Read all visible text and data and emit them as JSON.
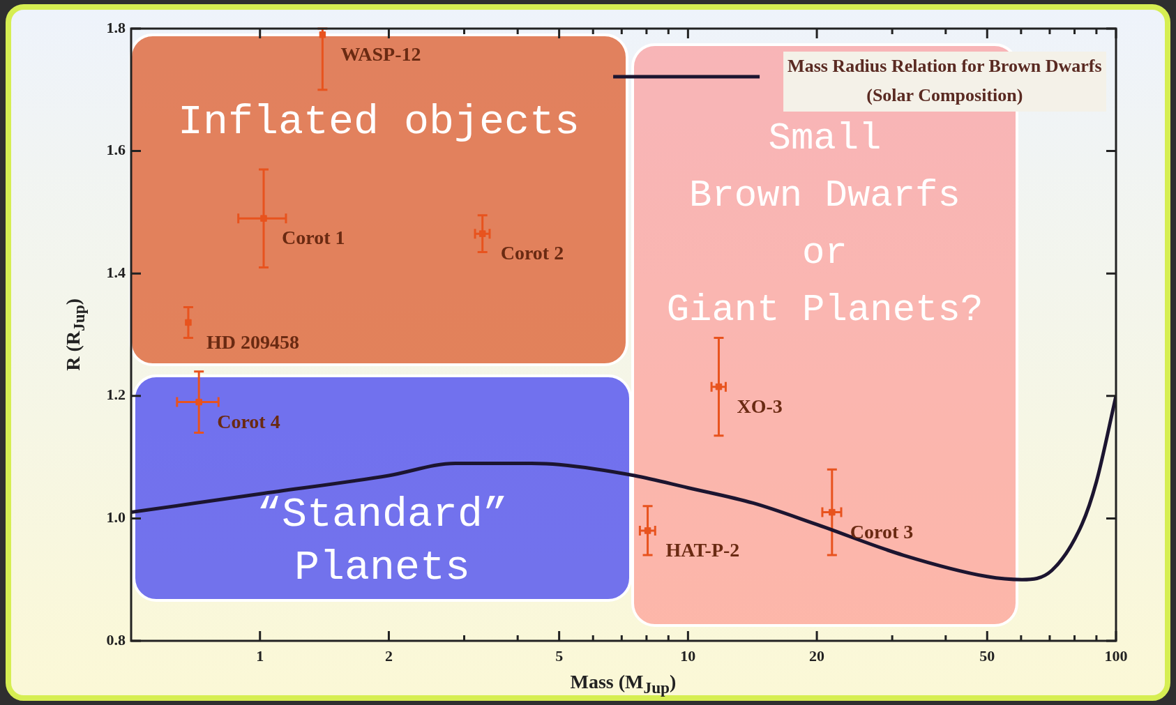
{
  "chart_data": {
    "type": "scatter",
    "xlabel": "Mass (M$_{Jup}$)",
    "ylabel": "R (R$_{Jup}$)",
    "log": "x",
    "xlim": [
      0.5,
      100
    ],
    "ylim": [
      0.8,
      1.8
    ],
    "xticks": [
      1,
      2,
      5,
      10,
      20,
      50,
      100,
      {
        "value": 3,
        "label": null
      },
      {
        "value": 4,
        "label": null
      },
      {
        "value": 6,
        "label": null
      },
      {
        "value": 7,
        "label": null
      },
      {
        "value": 8,
        "label": null
      },
      {
        "value": 9,
        "label": null
      },
      {
        "value": 30,
        "label": null
      },
      {
        "value": 40,
        "label": null
      },
      {
        "value": 60,
        "label": null
      },
      {
        "value": 70,
        "label": null
      },
      {
        "value": 80,
        "label": null
      },
      {
        "value": 90,
        "label": null
      }
    ],
    "yticks": [
      0.8,
      {
        "value": 1,
        "label": "1.0"
      },
      1.2,
      1.4,
      1.6,
      1.8
    ],
    "grid": false,
    "legend": "top right",
    "series": [
      {
        "type": "line",
        "name": "Mass Radius Relation for Brown Dwarfs (Solar Composition)",
        "color": "#1c1530",
        "marker": "none",
        "line_style": "solid",
        "x": [
          0.5,
          1,
          2,
          2.86,
          4.27,
          5,
          7.5,
          10,
          14.2,
          20,
          31.8,
          50,
          60.3,
          70.8,
          83.2,
          90,
          100
        ],
        "values": [
          1.01,
          1.04,
          1.07,
          1.09,
          1.09,
          1.088,
          1.07,
          1.05,
          1.025,
          0.99,
          0.94,
          0.905,
          0.9,
          0.915,
          0.99,
          1.06,
          1.2
        ]
      },
      {
        "type": "scatter",
        "color": "#e8531e",
        "marker": "square",
        "x": [
          1.4,
          1.02,
          3.31,
          0.68,
          0.72,
          11.8,
          8.05,
          21.7
        ],
        "values": [
          1.79,
          1.49,
          1.465,
          1.32,
          1.19,
          1.215,
          0.98,
          1.01
        ],
        "errors": [
          [
            1.7,
            1.8
          ],
          0.08,
          0.03,
          0.025,
          0.05,
          0.08,
          0.04,
          0.07
        ],
        "xerrors": [
          null,
          0.13,
          0.13,
          null,
          0.08,
          0.45,
          0.33,
          1.1
        ]
      }
    ],
    "annotations": [
      "Inflated objects",
      "Small\nBrown Dwarfs\nor\nGiant Planets?",
      "“Standard”\nPlanets",
      {
        "text": "WASP-12",
        "x": 1.4,
        "y": 1.79
      },
      {
        "text": "Corot 1",
        "x": 1.02,
        "y": 1.49
      },
      {
        "text": "Corot 2",
        "x": 3.31,
        "y": 1.465
      },
      {
        "text": "HD 209458",
        "x": 0.68,
        "y": 1.32
      },
      {
        "text": "Corot 4",
        "x": 0.72,
        "y": 1.19
      },
      {
        "text": "XO-3",
        "x": 11.8,
        "y": 1.215
      },
      {
        "text": "HAT-P-2",
        "x": 8.05,
        "y": 0.98
      },
      {
        "text": "Corot 3",
        "x": 21.7,
        "y": 1.01
      }
    ]
  }
}
